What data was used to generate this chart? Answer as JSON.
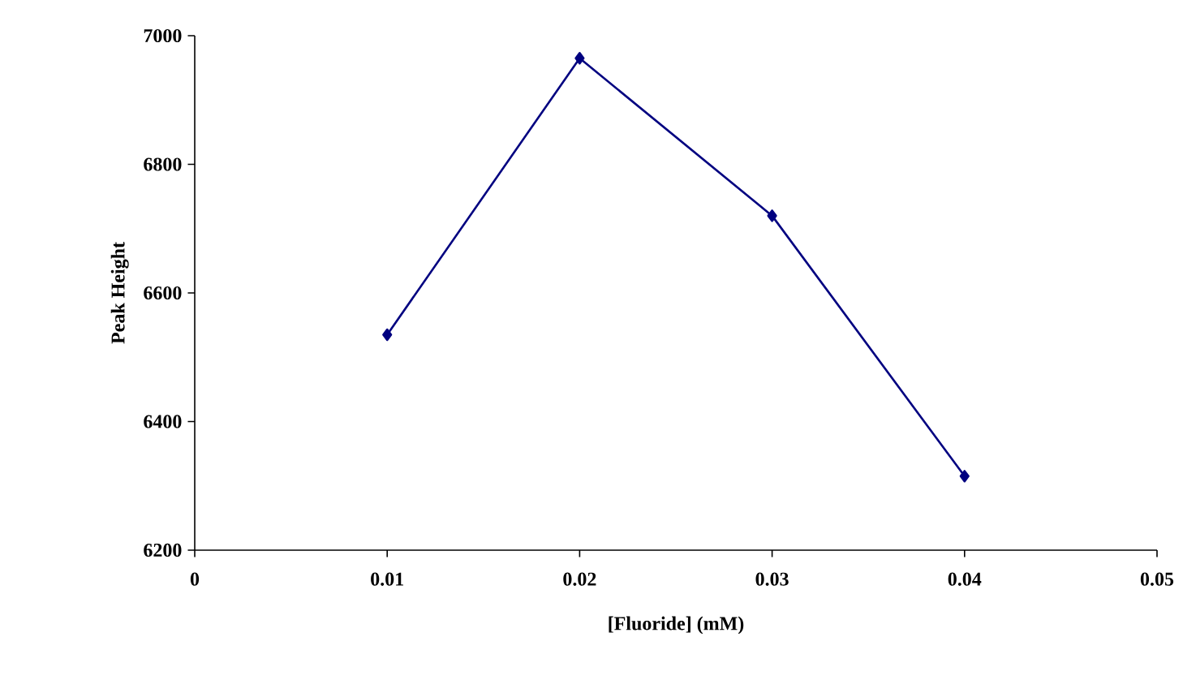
{
  "chart_data": {
    "type": "line",
    "xlabel": "[Fluoride] (mM)",
    "ylabel": "Peak Height",
    "x": [
      0.01,
      0.02,
      0.03,
      0.04
    ],
    "series": [
      {
        "color": "#000080",
        "values": [
          6535,
          6965,
          6720,
          6315
        ]
      }
    ],
    "xlim": [
      0,
      0.05
    ],
    "xticks": [
      {
        "value": 0,
        "label": "0"
      },
      0.01,
      0.02,
      0.03,
      0.04,
      0.05
    ],
    "ylim": [
      6200,
      7000
    ],
    "yticks": [
      6200,
      6400,
      6600,
      6800,
      7000
    ],
    "marker": "diamond"
  }
}
